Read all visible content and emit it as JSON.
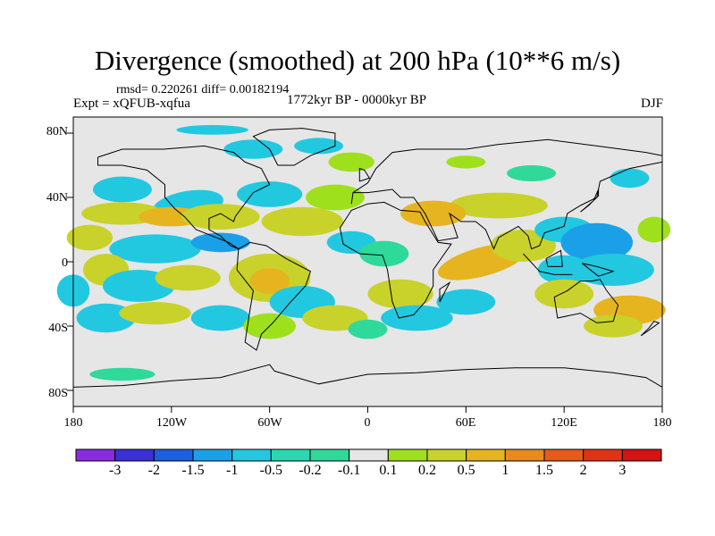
{
  "title": "Divergence (smoothed) at 200 hPa (10**6 m/s)",
  "stats": "rmsd= 0.220261  diff= 0.00182194",
  "experiment": "Expt = xQFUB-xqfua",
  "period": "1772kyr BP - 0000kyr BP",
  "season": "DJF",
  "lat_labels": [
    "80N",
    "40N",
    "0",
    "40S",
    "80S"
  ],
  "lon_labels": [
    "180",
    "120W",
    "60W",
    "0",
    "60E",
    "120E",
    "180"
  ],
  "colorbar": {
    "labels": [
      "-3",
      "-2",
      "-1.5",
      "-1",
      "-0.5",
      "-0.2",
      "-0.1",
      "0.1",
      "0.2",
      "0.5",
      "1",
      "1.5",
      "2",
      "3"
    ],
    "colors": [
      "#8a2be2",
      "#3a2fd8",
      "#1c5fe0",
      "#1aa0e8",
      "#22c8e0",
      "#28d8b0",
      "#2fd99a",
      "#e6e6e6",
      "#9ee01c",
      "#c8d22a",
      "#e6b41e",
      "#e88a1c",
      "#e85a1a",
      "#e23216",
      "#d71212"
    ]
  },
  "colors": {
    "background": "#e6e6e6",
    "neg_strong": "#1aa0e8",
    "neg_mid": "#22c8e0",
    "neg_weak": "#2fd99a",
    "pos_weak": "#9ee01c",
    "pos_mid": "#c8d22a",
    "pos_strong": "#e6b41e"
  }
}
